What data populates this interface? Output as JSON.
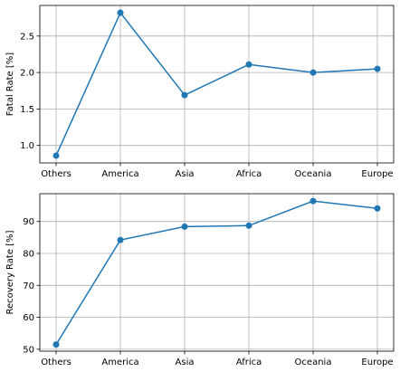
{
  "chart_data": [
    {
      "type": "line",
      "categories": [
        "Others",
        "America",
        "Asia",
        "Africa",
        "Oceania",
        "Europe"
      ],
      "values": [
        0.86,
        2.82,
        1.69,
        2.11,
        2.0,
        2.05
      ],
      "ylabel": "Fatal Rate [%]",
      "xlabel": "",
      "ylim": [
        0.76,
        2.92
      ],
      "yticks": [
        1.0,
        1.5,
        2.0,
        2.5
      ],
      "ytick_labels": [
        "1.0",
        "1.5",
        "2.0",
        "2.5"
      ],
      "grid": true,
      "color": "#1f77b4",
      "marker": "circle"
    },
    {
      "type": "line",
      "categories": [
        "Others",
        "America",
        "Asia",
        "Africa",
        "Oceania",
        "Europe"
      ],
      "values": [
        51.5,
        84.2,
        88.4,
        88.7,
        96.4,
        94.1
      ],
      "ylabel": "Recovery Rate [%]",
      "xlabel": "",
      "ylim": [
        49.4,
        98.7
      ],
      "yticks": [
        50,
        60,
        70,
        80,
        90
      ],
      "ytick_labels": [
        "50",
        "60",
        "70",
        "80",
        "90"
      ],
      "grid": true,
      "color": "#1f77b4",
      "marker": "circle"
    }
  ]
}
